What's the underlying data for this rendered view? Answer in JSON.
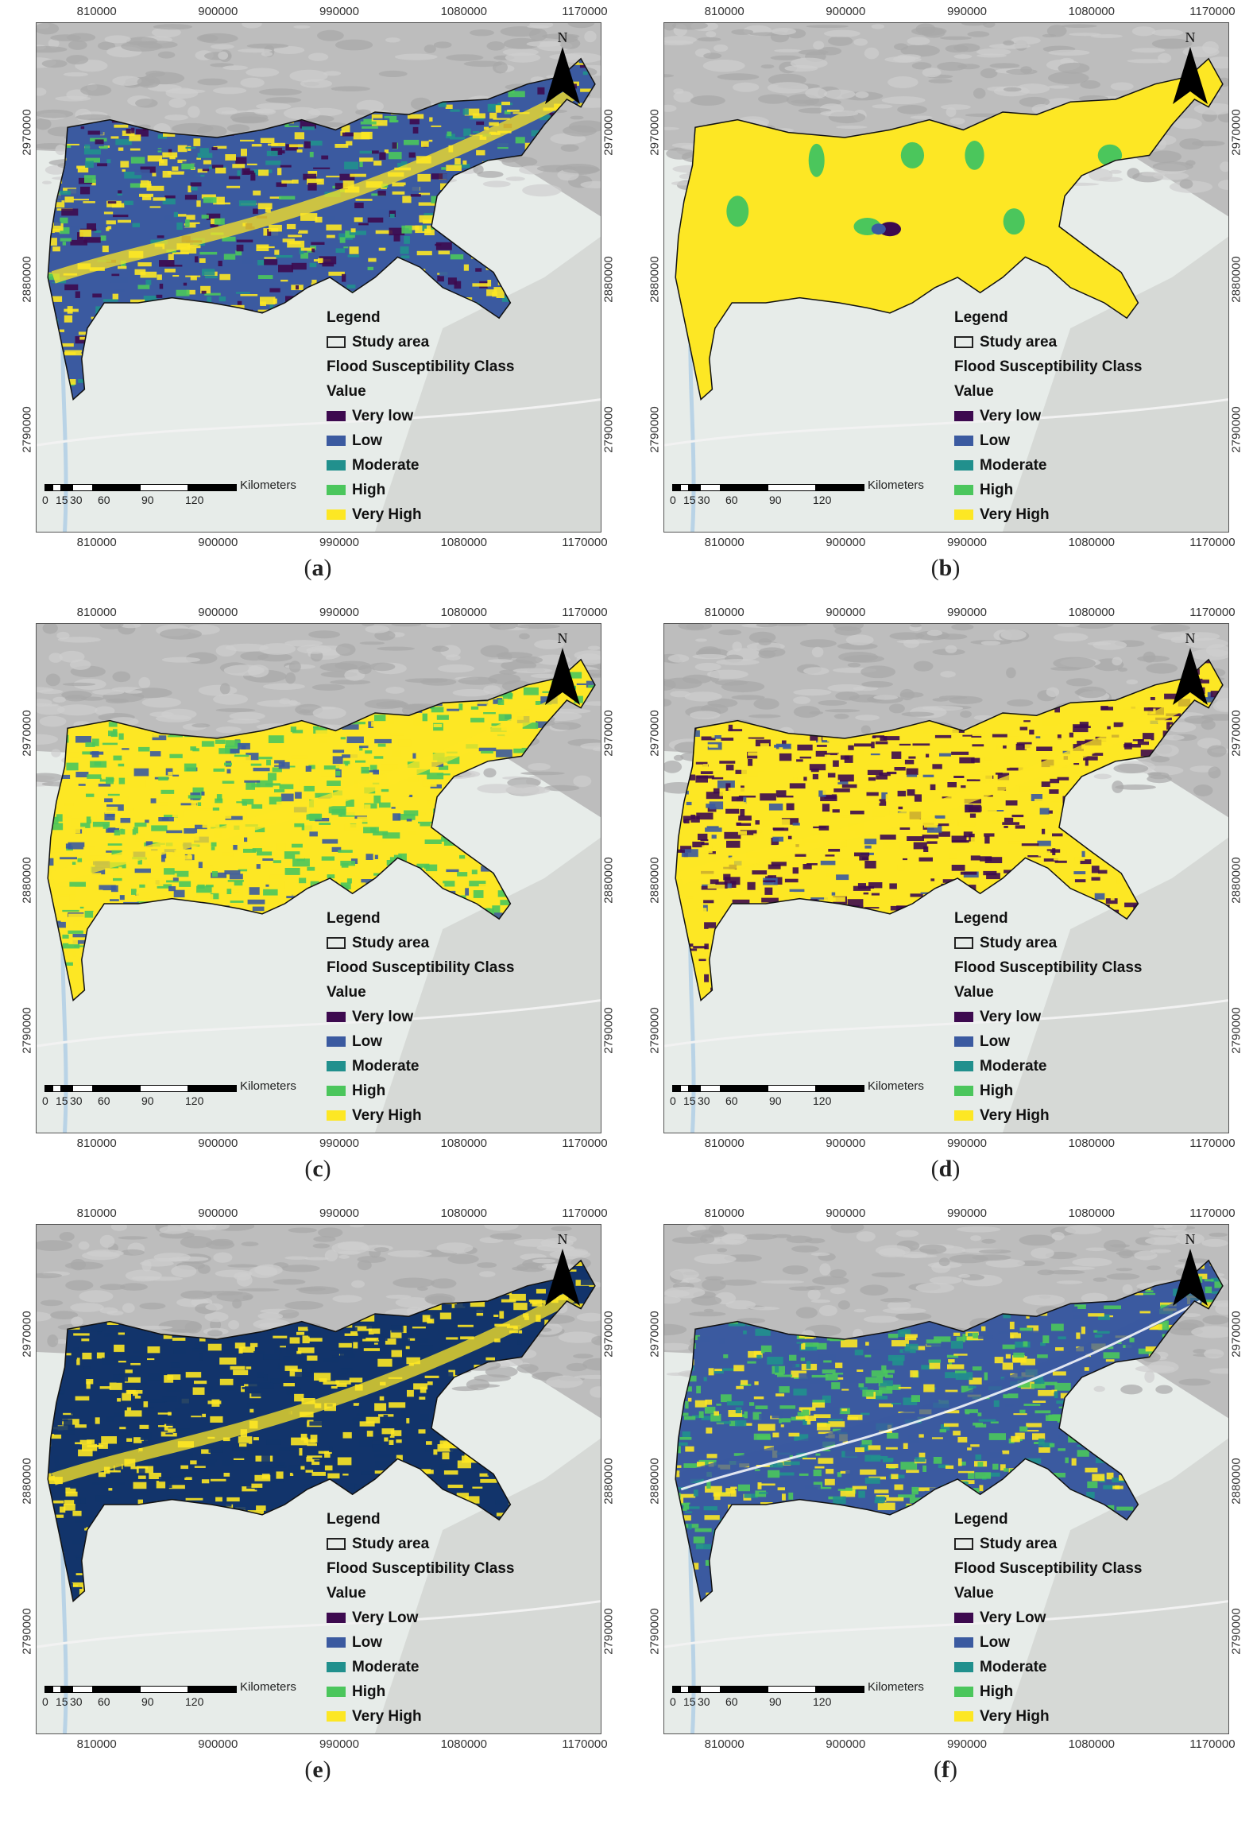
{
  "colors": {
    "very_low": "#3d0a4f",
    "low": "#3b5aa0",
    "moderate": "#21908d",
    "high": "#4bc65c",
    "very_high": "#fde724",
    "terrain": "#bdbdbd",
    "plain": "#e7ece9"
  },
  "axes": {
    "x_ticks": [
      "810000",
      "900000",
      "990000",
      "1080000",
      "1170000"
    ],
    "y_ticks": [
      "2970000",
      "2880000",
      "2790000"
    ]
  },
  "scalebar": {
    "labels": [
      "0",
      "15",
      "30",
      "60",
      "90",
      "120"
    ],
    "unit": "Kilometers"
  },
  "north_label": "N",
  "legend_common": {
    "title": "Legend",
    "study_area": "Study area",
    "class_title": "Flood Susceptibility Class",
    "value": "Value"
  },
  "panels": [
    {
      "caption_letter": "a",
      "pattern": "mixed",
      "classes": [
        "Very low",
        "Low",
        "Moderate",
        "High",
        "Very High"
      ]
    },
    {
      "caption_letter": "b",
      "pattern": "mostly_very_high",
      "classes": [
        "Very low",
        "Low",
        "Moderate",
        "High",
        "Very High"
      ]
    },
    {
      "caption_letter": "c",
      "pattern": "yellow_green",
      "classes": [
        "Very low",
        "Low",
        "Moderate",
        "High",
        "Very High"
      ]
    },
    {
      "caption_letter": "d",
      "pattern": "purple_yellow",
      "classes": [
        "Very low",
        "Low",
        "Moderate",
        "High",
        "Very High"
      ]
    },
    {
      "caption_letter": "e",
      "pattern": "blue_yellow",
      "classes": [
        "Very Low",
        "Low",
        "Moderate",
        "High",
        "Very High"
      ]
    },
    {
      "caption_letter": "f",
      "pattern": "blue_green",
      "classes": [
        "Very Low",
        "Low",
        "Moderate",
        "High",
        "Very High"
      ]
    }
  ]
}
